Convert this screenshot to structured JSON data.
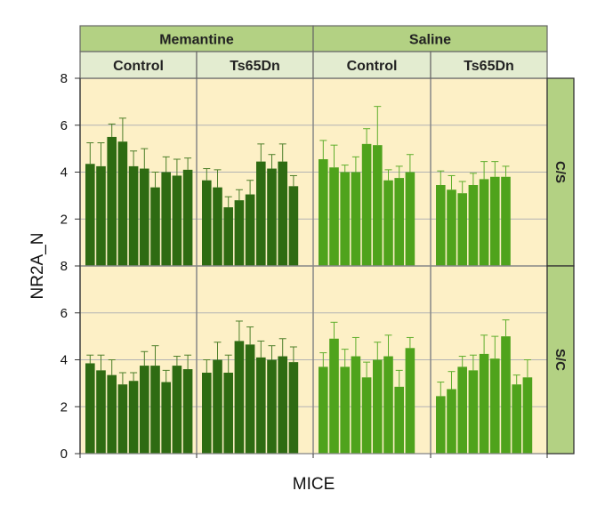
{
  "chart_data": {
    "type": "bar",
    "ylabel": "NR2A_N",
    "xlabel": "MICE",
    "ylim": [
      0,
      8
    ],
    "yticks": [
      0,
      2,
      4,
      6,
      8
    ],
    "treatments": [
      "Memantine",
      "Saline"
    ],
    "genotypes": [
      "Control",
      "Ts65Dn"
    ],
    "behaviors": [
      "C/S",
      "S/C"
    ],
    "colors": {
      "memantine_bar": "#2e6b12",
      "saline_bar": "#4fa31c",
      "panel_bg": "#fdf0c6",
      "outer_strip": "#b3d183",
      "inner_strip": "#e3ecd0",
      "grid": "#b3b3b3",
      "error_bar_memantine": "#4d7f2a",
      "error_bar_saline": "#5fae2c"
    },
    "panels": [
      {
        "treatment": "Memantine",
        "genotype": "Control",
        "behavior": "C/S",
        "values": [
          4.35,
          4.25,
          5.5,
          5.3,
          4.25,
          4.15,
          3.35,
          4.0,
          3.85,
          4.1
        ],
        "errors": [
          0.9,
          1.0,
          0.55,
          1.0,
          0.65,
          0.85,
          0.65,
          0.65,
          0.7,
          0.5
        ]
      },
      {
        "treatment": "Memantine",
        "genotype": "Ts65Dn",
        "behavior": "C/S",
        "values": [
          3.65,
          3.35,
          2.5,
          2.8,
          3.05,
          4.45,
          4.15,
          4.45,
          3.4
        ],
        "errors": [
          0.5,
          0.75,
          0.45,
          0.45,
          0.6,
          0.75,
          0.6,
          0.75,
          0.45
        ]
      },
      {
        "treatment": "Saline",
        "genotype": "Control",
        "behavior": "C/S",
        "values": [
          4.55,
          4.2,
          4.0,
          4.0,
          5.2,
          5.15,
          3.65,
          3.75,
          4.0
        ],
        "errors": [
          0.8,
          0.95,
          0.3,
          0.65,
          0.65,
          1.65,
          0.45,
          0.5,
          0.75
        ]
      },
      {
        "treatment": "Saline",
        "genotype": "Ts65Dn",
        "behavior": "C/S",
        "values": [
          3.45,
          3.25,
          3.1,
          3.45,
          3.7,
          3.8,
          3.8
        ],
        "errors": [
          0.6,
          0.6,
          0.5,
          0.5,
          0.75,
          0.65,
          0.45
        ]
      },
      {
        "treatment": "Memantine",
        "genotype": "Control",
        "behavior": "S/C",
        "values": [
          3.85,
          3.55,
          3.35,
          2.95,
          3.1,
          3.75,
          3.75,
          3.05,
          3.75,
          3.6
        ],
        "errors": [
          0.35,
          0.65,
          0.65,
          0.5,
          0.35,
          0.6,
          0.85,
          0.5,
          0.4,
          0.6
        ]
      },
      {
        "treatment": "Memantine",
        "genotype": "Ts65Dn",
        "behavior": "S/C",
        "values": [
          3.45,
          4.0,
          3.45,
          4.8,
          4.65,
          4.1,
          4.0,
          4.15,
          3.9
        ],
        "errors": [
          0.55,
          0.75,
          0.75,
          0.85,
          0.75,
          0.7,
          0.6,
          0.75,
          0.65
        ]
      },
      {
        "treatment": "Saline",
        "genotype": "Control",
        "behavior": "S/C",
        "values": [
          3.7,
          4.9,
          3.7,
          4.15,
          3.25,
          4.0,
          4.15,
          2.85,
          4.5
        ],
        "errors": [
          0.6,
          0.7,
          0.75,
          0.8,
          0.65,
          0.75,
          0.9,
          0.7,
          0.45
        ]
      },
      {
        "treatment": "Saline",
        "genotype": "Ts65Dn",
        "behavior": "S/C",
        "values": [
          2.45,
          2.75,
          3.7,
          3.55,
          4.25,
          4.05,
          5.0,
          2.95,
          3.25
        ],
        "errors": [
          0.6,
          0.75,
          0.45,
          0.65,
          0.8,
          0.95,
          0.7,
          0.4,
          0.75
        ]
      }
    ]
  }
}
